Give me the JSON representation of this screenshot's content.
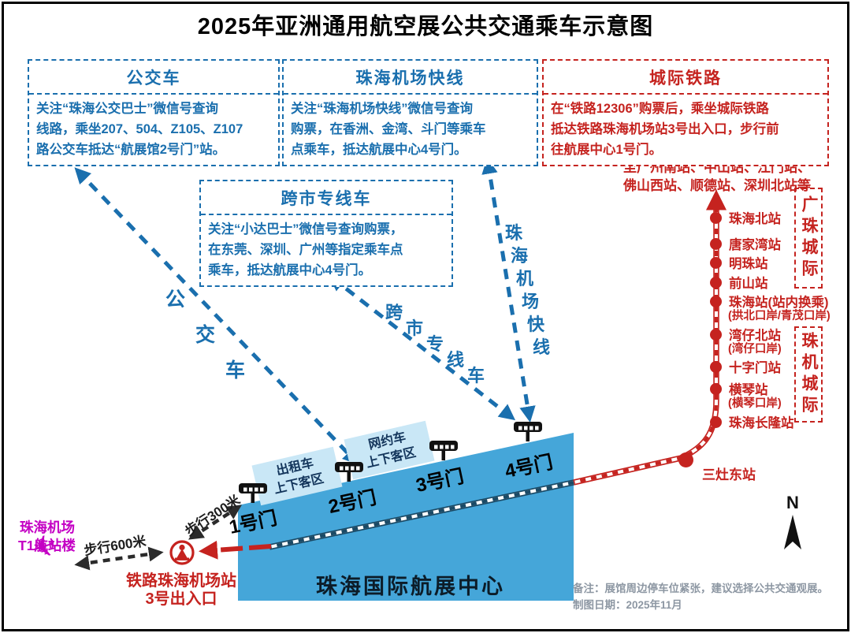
{
  "title": "2025年亚洲通用航空展公共交通乘车示意图",
  "boxes": {
    "bus": {
      "title": "公交车",
      "lines": [
        "关注“珠海公交巴士”微信号查询",
        "线路，乘坐207、504、Z105、Z107",
        "路公交车抵达“航展馆2号门”站。"
      ]
    },
    "airport_express": {
      "title": "珠海机场快线",
      "lines": [
        "关注“珠海机场快线”微信号查询",
        "购票，在香洲、金湾、斗门等乘车",
        "点乘车，抵达航展中心4号门。"
      ]
    },
    "intercity_rail": {
      "title": "城际铁路",
      "lines": [
        "在“铁路12306”购票后，乘坐城际铁路",
        "抵达铁路珠海机场站3号出入口，步行前",
        "往航展中心1号门。"
      ]
    },
    "cross_city": {
      "title": "跨市专线车",
      "lines": [
        "关注“小达巴士”微信号查询购票，",
        "在东莞、深圳、广州等指定乘车点",
        "乘车，抵达航展中心4号门。"
      ]
    }
  },
  "route_labels": {
    "bus": "公交车",
    "cross_city": "跨市专线车",
    "airport_express": "珠海机场快线"
  },
  "railway": {
    "to_lines": [
      "至广州南站、中山站、江门站、",
      "佛山西站、顺德站、深圳北站等"
    ],
    "stations": [
      {
        "name": "珠海北站",
        "sub": ""
      },
      {
        "name": "唐家湾站",
        "sub": ""
      },
      {
        "name": "明珠站",
        "sub": ""
      },
      {
        "name": "前山站",
        "sub": ""
      },
      {
        "name": "珠海站(站内换乘)",
        "sub": "(拱北口岸/青茂口岸)"
      },
      {
        "name": "湾仔北站",
        "sub": "(湾仔口岸)"
      },
      {
        "name": "十字门站",
        "sub": ""
      },
      {
        "name": "横琴站",
        "sub": "(横琴口岸)"
      },
      {
        "name": "珠海长隆站",
        "sub": ""
      }
    ],
    "sanzao": "三灶东站",
    "corridors": [
      "广珠城际",
      "珠机城际"
    ]
  },
  "venue": {
    "name": "珠海国际航展中心",
    "gates": [
      "1号门",
      "2号门",
      "3号门",
      "4号门"
    ],
    "zones": [
      {
        "lines": [
          "出租车",
          "上下客区"
        ]
      },
      {
        "lines": [
          "网约车",
          "上下客区"
        ]
      }
    ]
  },
  "landmarks": {
    "airport_lines": [
      "珠海机场",
      "T1航站楼"
    ],
    "rail_station_lines": [
      "铁路珠海机场站",
      "3号出入口"
    ],
    "walk600": "步行600米",
    "walk300": "步行300米"
  },
  "notes": {
    "remark": "备注：展馆周边停车位紧张，建议选择公共交通观展。",
    "date": "制图日期：2025年11月"
  },
  "compass": "N",
  "colors": {
    "blue": "#1a6fae",
    "red": "#c5231f",
    "venue_blue": "#45a6d9",
    "zone_blue": "#c9e7f6",
    "magenta": "#c400c4",
    "note_gray": "#8d97a3",
    "rail_in_venue": "#1a4a66"
  }
}
